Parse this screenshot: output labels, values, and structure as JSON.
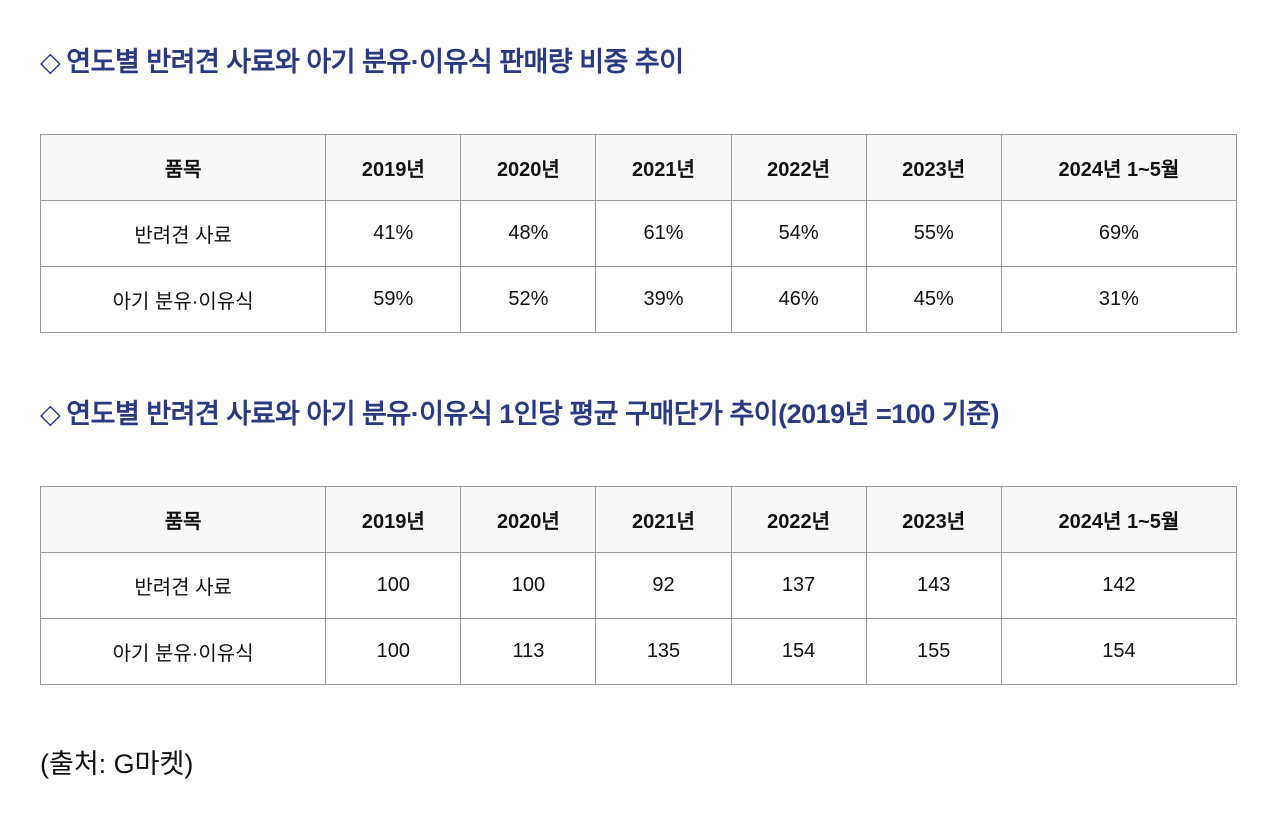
{
  "section1": {
    "diamond": "◇",
    "title": "연도별 반려견 사료와 아기 분유·이유식 판매량 비중 추이",
    "headers": [
      "품목",
      "2019년",
      "2020년",
      "2021년",
      "2022년",
      "2023년",
      "2024년 1~5월"
    ],
    "rows": [
      [
        "반려견 사료",
        "41%",
        "48%",
        "61%",
        "54%",
        "55%",
        "69%"
      ],
      [
        "아기 분유·이유식",
        "59%",
        "52%",
        "39%",
        "46%",
        "45%",
        "31%"
      ]
    ]
  },
  "section2": {
    "diamond": "◇",
    "title": "연도별 반려견 사료와 아기 분유·이유식 1인당 평균 구매단가 추이(2019년 =100 기준)",
    "headers": [
      "품목",
      "2019년",
      "2020년",
      "2021년",
      "2022년",
      "2023년",
      "2024년 1~5월"
    ],
    "rows": [
      [
        "반려견 사료",
        "100",
        "100",
        "92",
        "137",
        "143",
        "142"
      ],
      [
        "아기 분유·이유식",
        "100",
        "113",
        "135",
        "154",
        "155",
        "154"
      ]
    ]
  },
  "source": "(출처: G마켓)"
}
